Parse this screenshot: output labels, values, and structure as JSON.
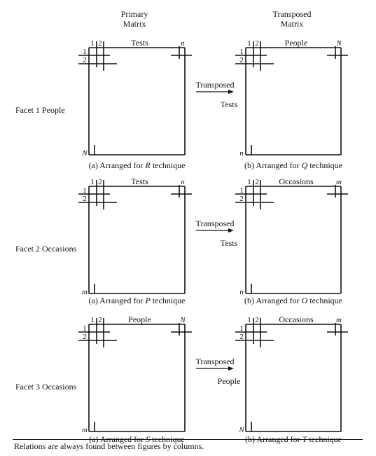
{
  "headers": {
    "primary": [
      "Primary",
      "Matrix"
    ],
    "transposed": [
      "Transposed",
      "Matrix"
    ]
  },
  "arrow_label": "Transposed",
  "rows": [
    {
      "facet_label": "Facet 1  People",
      "primary": {
        "top_label": "Tests",
        "corner_top": "n",
        "corner_bottom": "N",
        "caption_prefix": "(a)  Arranged for ",
        "caption_letter": "R",
        "caption_suffix": " technique"
      },
      "transposed": {
        "top_label": "People",
        "corner_top": "N",
        "corner_bottom": "n",
        "side_label": "Tests",
        "caption_prefix": "(b)  Arranged for ",
        "caption_letter": "Q",
        "caption_suffix": " technique"
      }
    },
    {
      "facet_label": "Facet 2  Occasions",
      "primary": {
        "top_label": "Tests",
        "corner_top": "n",
        "corner_bottom": "m",
        "caption_prefix": "(a)  Arranged for ",
        "caption_letter": "P",
        "caption_suffix": " technique"
      },
      "transposed": {
        "top_label": "Occasions",
        "corner_top": "m",
        "corner_bottom": "n",
        "side_label": "Tests",
        "caption_prefix": "(b)  Arranged for ",
        "caption_letter": "O",
        "caption_suffix": " technique"
      }
    },
    {
      "facet_label": "Facet 3  Occasions",
      "primary": {
        "top_label": "People",
        "corner_top": "N",
        "corner_bottom": "m",
        "caption_prefix": "(a)  Arranged for ",
        "caption_letter": "S",
        "caption_suffix": " technique"
      },
      "transposed": {
        "top_label": "Occasions",
        "corner_top": "m",
        "corner_bottom": "N",
        "side_label": "People",
        "caption_prefix": "(b)  Arranged for ",
        "caption_letter": "T",
        "caption_suffix": " technique"
      }
    }
  ],
  "index_labels": {
    "one": "1",
    "two": "2"
  },
  "footnote": "Relations are always found between figures by columns."
}
